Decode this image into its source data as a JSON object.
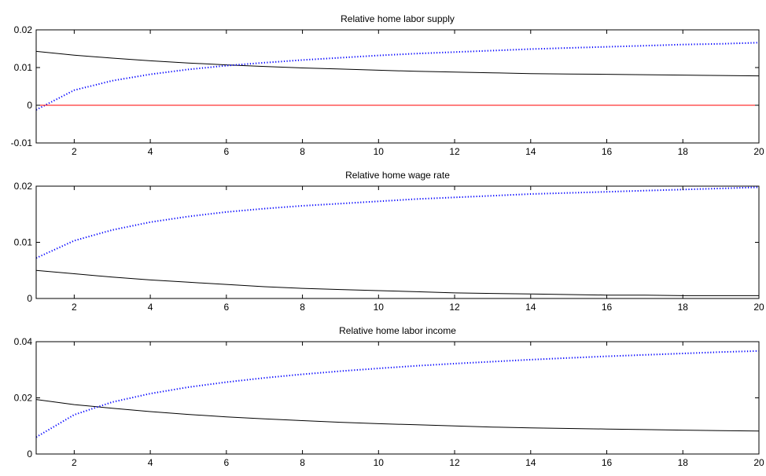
{
  "chart_data": [
    {
      "type": "line",
      "title": "Relative home labor supply",
      "xlabel": "",
      "ylabel": "",
      "xlim": [
        1,
        20
      ],
      "ylim": [
        -0.01,
        0.02
      ],
      "x_ticks": [
        2,
        4,
        6,
        8,
        10,
        12,
        14,
        16,
        18,
        20
      ],
      "y_ticks": [
        -0.01,
        0,
        0.01,
        0.02
      ],
      "y_tick_labels": [
        "-0.01",
        "0",
        "0.01",
        "0.02"
      ],
      "grid": false,
      "x": [
        1,
        2,
        3,
        4,
        5,
        6,
        7,
        8,
        9,
        10,
        11,
        12,
        13,
        14,
        15,
        16,
        17,
        18,
        19,
        20
      ],
      "series": [
        {
          "style": "solid",
          "color": "#000000",
          "values": [
            0.0143,
            0.0133,
            0.0125,
            0.0118,
            0.0112,
            0.0107,
            0.0103,
            0.0099,
            0.0096,
            0.0093,
            0.009,
            0.0088,
            0.0086,
            0.0084,
            0.0083,
            0.0082,
            0.0081,
            0.008,
            0.0079,
            0.0078
          ]
        },
        {
          "style": "dotted",
          "color": "#0000ff",
          "values": [
            -0.0012,
            0.004,
            0.0065,
            0.0082,
            0.0095,
            0.0105,
            0.0113,
            0.012,
            0.0126,
            0.0132,
            0.0137,
            0.0141,
            0.0145,
            0.0149,
            0.0152,
            0.0155,
            0.0158,
            0.0161,
            0.0163,
            0.0166
          ]
        },
        {
          "style": "solid",
          "color": "#ff0000",
          "values": [
            0,
            0,
            0,
            0,
            0,
            0,
            0,
            0,
            0,
            0,
            0,
            0,
            0,
            0,
            0,
            0,
            0,
            0,
            0,
            0
          ]
        }
      ]
    },
    {
      "type": "line",
      "title": "Relative home wage rate",
      "xlabel": "",
      "ylabel": "",
      "xlim": [
        1,
        20
      ],
      "ylim": [
        0,
        0.02
      ],
      "x_ticks": [
        2,
        4,
        6,
        8,
        10,
        12,
        14,
        16,
        18,
        20
      ],
      "y_ticks": [
        0,
        0.01,
        0.02
      ],
      "y_tick_labels": [
        "0",
        "0.01",
        "0.02"
      ],
      "grid": false,
      "x": [
        1,
        2,
        3,
        4,
        5,
        6,
        7,
        8,
        9,
        10,
        11,
        12,
        13,
        14,
        15,
        16,
        17,
        18,
        19,
        20
      ],
      "series": [
        {
          "style": "solid",
          "color": "#000000",
          "values": [
            0.005,
            0.0044,
            0.0038,
            0.0033,
            0.0029,
            0.0025,
            0.0021,
            0.0018,
            0.0016,
            0.0014,
            0.0012,
            0.001,
            0.0009,
            0.0008,
            0.0007,
            0.0006,
            0.0006,
            0.0005,
            0.0005,
            0.0005
          ]
        },
        {
          "style": "dotted",
          "color": "#0000ff",
          "values": [
            0.0072,
            0.0103,
            0.0122,
            0.0136,
            0.0146,
            0.0154,
            0.016,
            0.0165,
            0.0169,
            0.0173,
            0.0177,
            0.018,
            0.0183,
            0.0186,
            0.0188,
            0.019,
            0.0192,
            0.0194,
            0.0196,
            0.0198
          ]
        }
      ]
    },
    {
      "type": "line",
      "title": "Relative home labor income",
      "xlabel": "",
      "ylabel": "",
      "xlim": [
        1,
        20
      ],
      "ylim": [
        0,
        0.04
      ],
      "x_ticks": [
        2,
        4,
        6,
        8,
        10,
        12,
        14,
        16,
        18,
        20
      ],
      "y_ticks": [
        0,
        0.02,
        0.04
      ],
      "y_tick_labels": [
        "0",
        "0.02",
        "0.04"
      ],
      "grid": false,
      "x": [
        1,
        2,
        3,
        4,
        5,
        6,
        7,
        8,
        9,
        10,
        11,
        12,
        13,
        14,
        15,
        16,
        17,
        18,
        19,
        20
      ],
      "series": [
        {
          "style": "solid",
          "color": "#000000",
          "values": [
            0.0194,
            0.0176,
            0.0163,
            0.0151,
            0.0141,
            0.0132,
            0.0125,
            0.0119,
            0.0113,
            0.0108,
            0.0104,
            0.01,
            0.0096,
            0.0093,
            0.0091,
            0.0089,
            0.0087,
            0.0085,
            0.0083,
            0.0082
          ]
        },
        {
          "style": "dotted",
          "color": "#0000ff",
          "values": [
            0.006,
            0.014,
            0.0185,
            0.0215,
            0.0238,
            0.0256,
            0.0271,
            0.0284,
            0.0295,
            0.0305,
            0.0314,
            0.0322,
            0.0329,
            0.0336,
            0.0342,
            0.0348,
            0.0353,
            0.0358,
            0.0363,
            0.0367
          ]
        }
      ]
    }
  ]
}
